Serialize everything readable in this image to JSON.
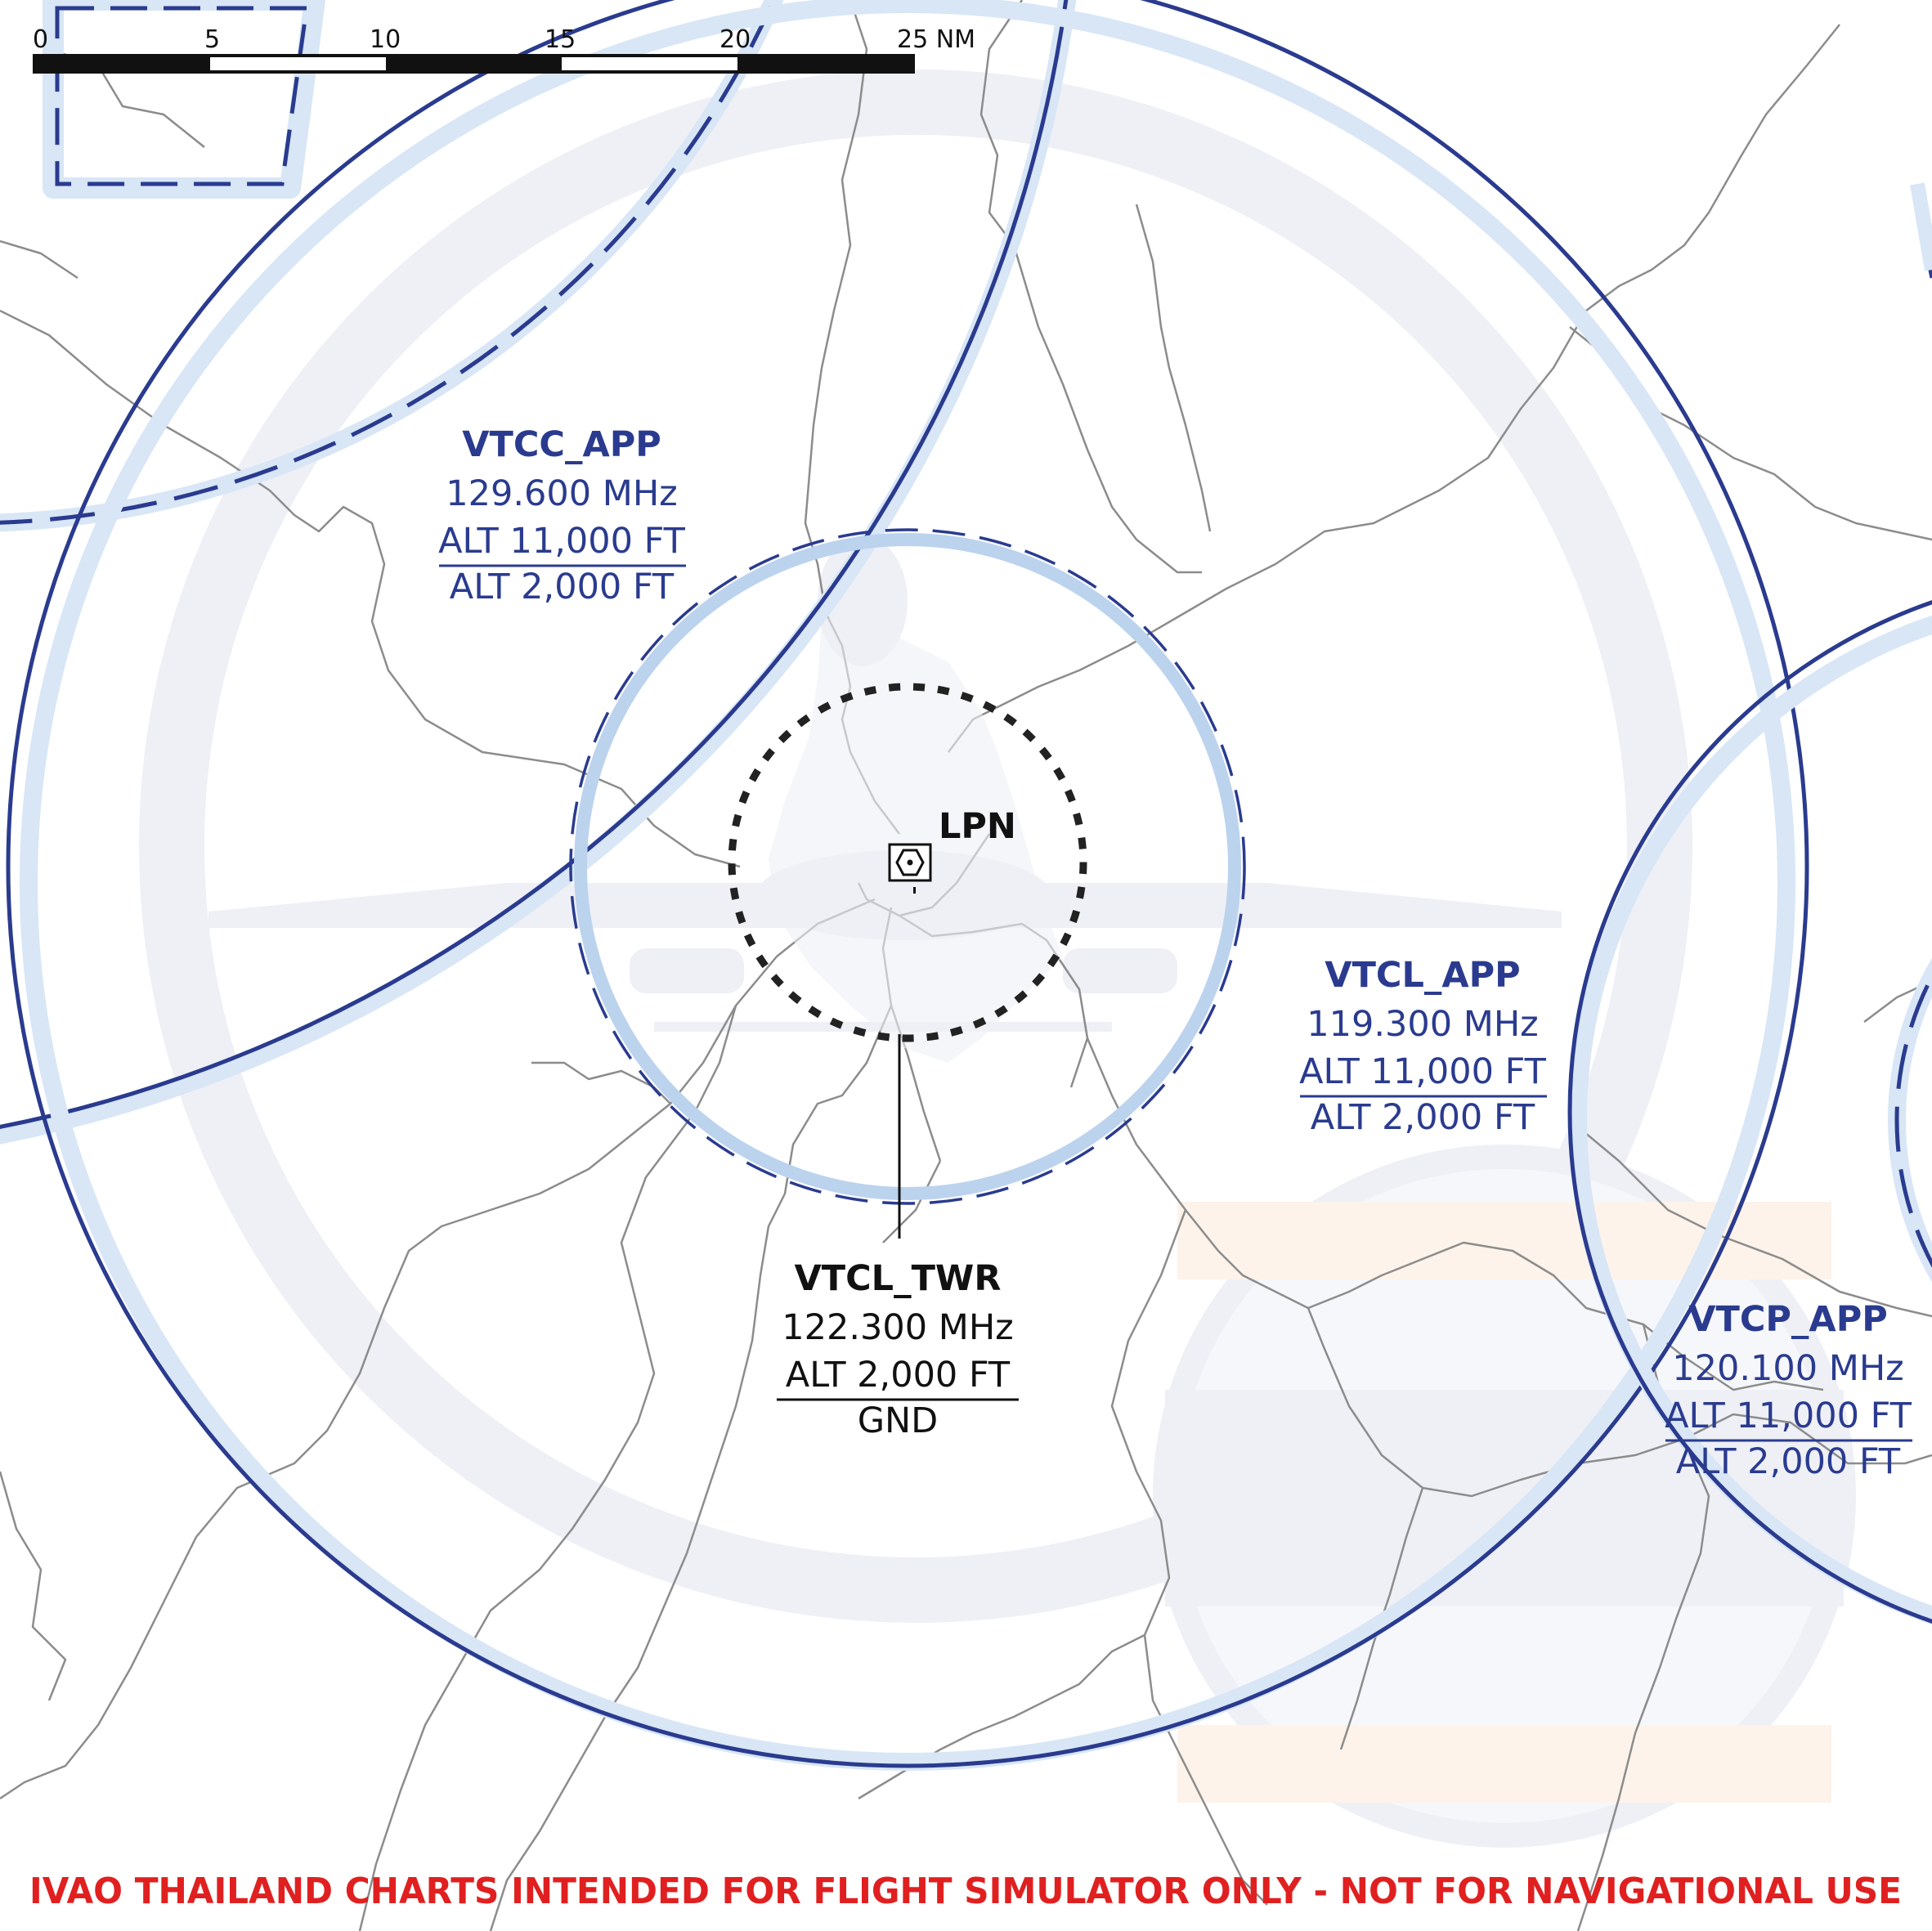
{
  "scale_bar": {
    "ticks": [
      "0",
      "5",
      "10",
      "15",
      "20",
      "25 NM"
    ]
  },
  "airport": {
    "ident": "LPN"
  },
  "sectors": [
    {
      "callsign": "VTCC_APP",
      "frequency": "129.600 MHz",
      "upper": "ALT 11,000 FT",
      "lower": "ALT 2,000 FT"
    },
    {
      "callsign": "VTCL_APP",
      "frequency": "119.300 MHz",
      "upper": "ALT 11,000 FT",
      "lower": "ALT 2,000 FT"
    },
    {
      "callsign": "VTCL_TWR",
      "frequency": "122.300 MHz",
      "upper": "ALT 2,000 FT",
      "lower": "GND"
    },
    {
      "callsign": "VTCP_APP",
      "frequency": "120.100 MHz",
      "upper": "ALT 11,000 FT",
      "lower": "ALT 2,000 FT"
    }
  ],
  "disclaimer": "IVAO THAILAND CHARTS INTENDED FOR FLIGHT SIMULATOR ONLY - NOT FOR NAVIGATIONAL USE",
  "colors": {
    "boundary": "#2a3b8f",
    "boundary_halo": "#c9dcf2",
    "watermark": "#eef0f6",
    "roads": "#8c8c8c",
    "disclaimer": "#e02020"
  }
}
